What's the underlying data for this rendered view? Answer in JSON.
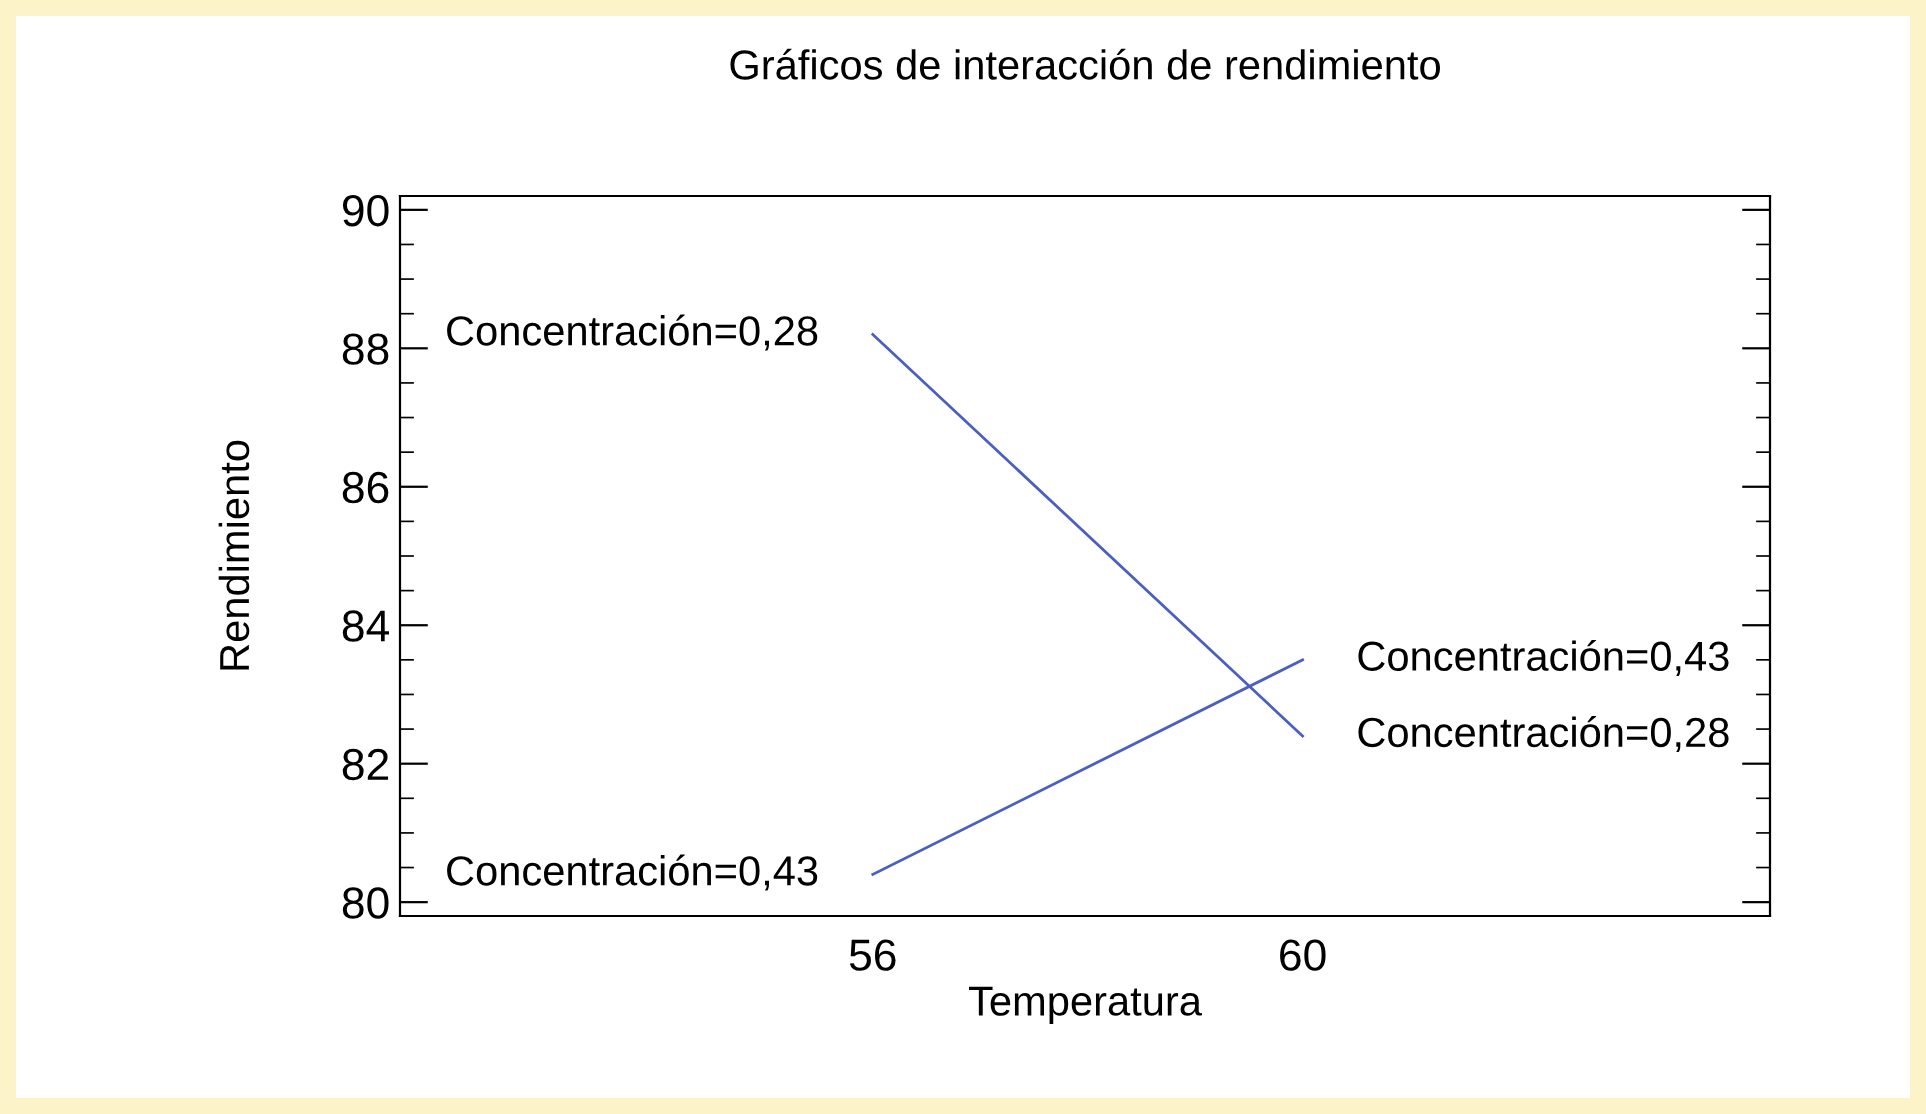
{
  "chart_data": {
    "type": "line",
    "title": "Gráficos de interacción de rendimiento",
    "xlabel": "Temperatura",
    "ylabel": "Rendimiento",
    "x": [
      56,
      60
    ],
    "series": [
      {
        "name": "Concentración=0,28",
        "color": "#4a5fc1",
        "values": [
          88.2,
          82.4
        ]
      },
      {
        "name": "Concentración=0,43",
        "color": "#4a5fc1",
        "values": [
          80.4,
          83.5
        ]
      }
    ],
    "xlim": [
      51.6,
      64.35
    ],
    "ylim": [
      79.8,
      90.2
    ],
    "xticks": [
      56,
      60
    ],
    "yticks": [
      80,
      82,
      84,
      86,
      88,
      90
    ],
    "grid": false,
    "legend": false,
    "marker": "none",
    "line_style": "solid"
  }
}
